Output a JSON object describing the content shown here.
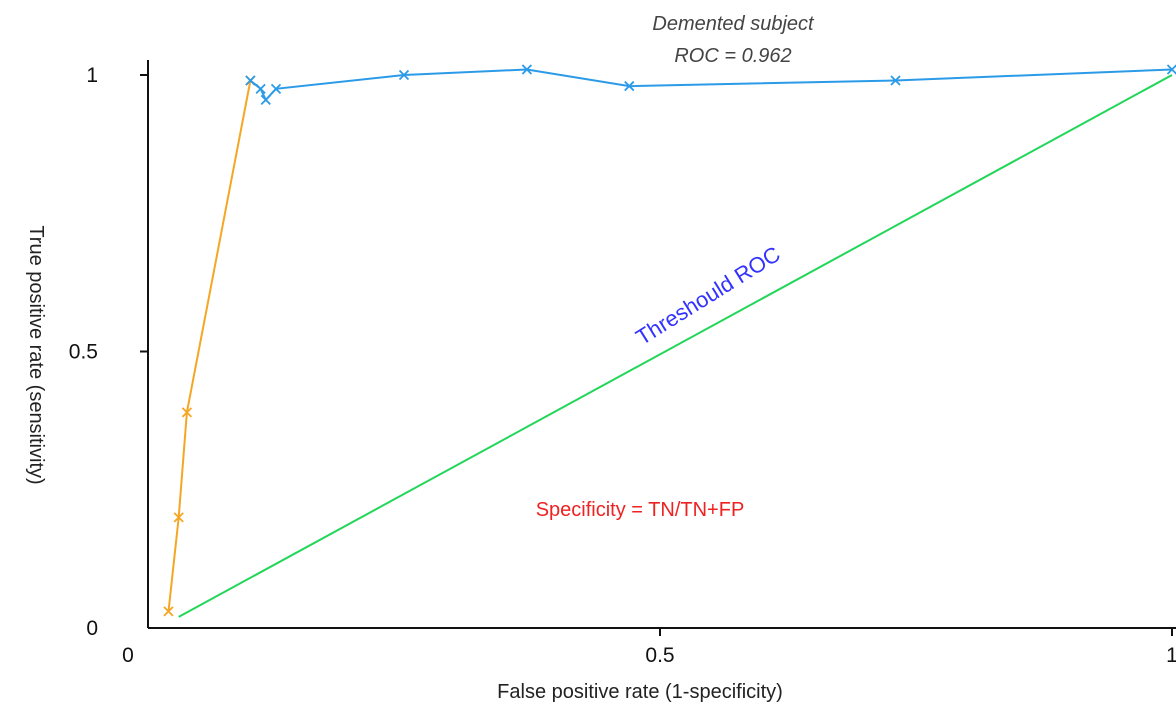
{
  "chart_data": {
    "type": "line",
    "xlabel": "False positive rate (1-specificity)",
    "ylabel": "True positive rate (sensitivity)",
    "xlim": [
      0,
      1
    ],
    "ylim": [
      0,
      1
    ],
    "xticks": [
      "0",
      "0.5",
      "1"
    ],
    "yticks": [
      "0",
      "0.5",
      "1"
    ],
    "grid": false,
    "series": [
      {
        "color": "#f5a623",
        "marker": "x",
        "x": [
          0.02,
          0.03,
          0.038,
          0.1
        ],
        "y": [
          0.03,
          0.2,
          0.39,
          0.99
        ]
      },
      {
        "color": "#2b9be8",
        "marker": "x",
        "x": [
          0.1,
          0.11,
          0.115,
          0.125,
          0.25,
          0.37,
          0.47,
          0.73,
          1.0
        ],
        "y": [
          0.99,
          0.975,
          0.955,
          0.975,
          1.0,
          1.01,
          0.98,
          0.99,
          1.01
        ]
      },
      {
        "color": "#22d65a",
        "marker": "none",
        "x": [
          0.03,
          1.0
        ],
        "y": [
          0.02,
          1.0
        ]
      }
    ],
    "annotations": [
      {
        "id": "title1",
        "text": "Demented subject"
      },
      {
        "id": "title2",
        "text": "ROC = 0.962"
      },
      {
        "id": "threshold",
        "text": "Threshould ROC",
        "color": "#3333ff"
      },
      {
        "id": "specificity",
        "text": "Specificity = TN/TN+FP",
        "color": "#ee2222"
      }
    ]
  }
}
